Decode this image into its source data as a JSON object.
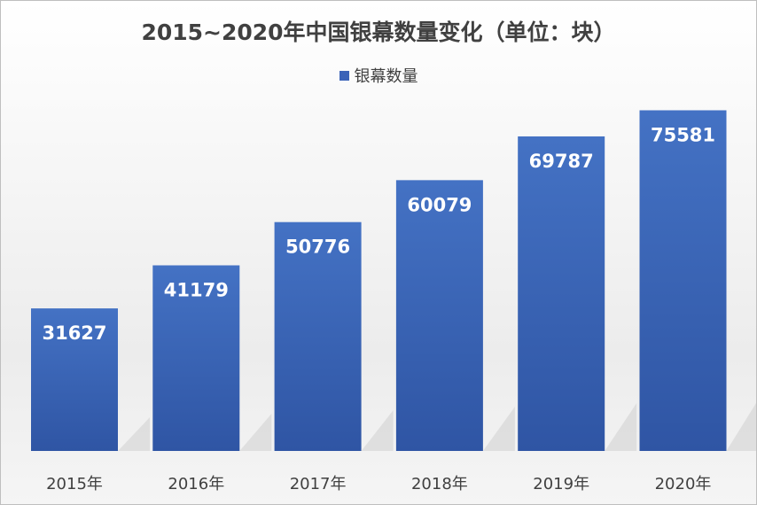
{
  "chart_data": {
    "type": "bar",
    "title": "2015~2020年中国银幕数量变化（单位：块）",
    "categories": [
      "2015年",
      "2016年",
      "2017年",
      "2018年",
      "2019年",
      "2020年"
    ],
    "series": [
      {
        "name": "银幕数量",
        "values": [
          31627,
          41179,
          50776,
          60079,
          69787,
          75581
        ]
      }
    ],
    "ylim": [
      0,
      80000
    ],
    "grid": false,
    "legend_position": "top",
    "colors": {
      "bar": "#3a62b8",
      "bar_light": "#4472c4",
      "bar_dark": "#2f55a4",
      "label": "#ffffff",
      "text": "#404040"
    }
  }
}
